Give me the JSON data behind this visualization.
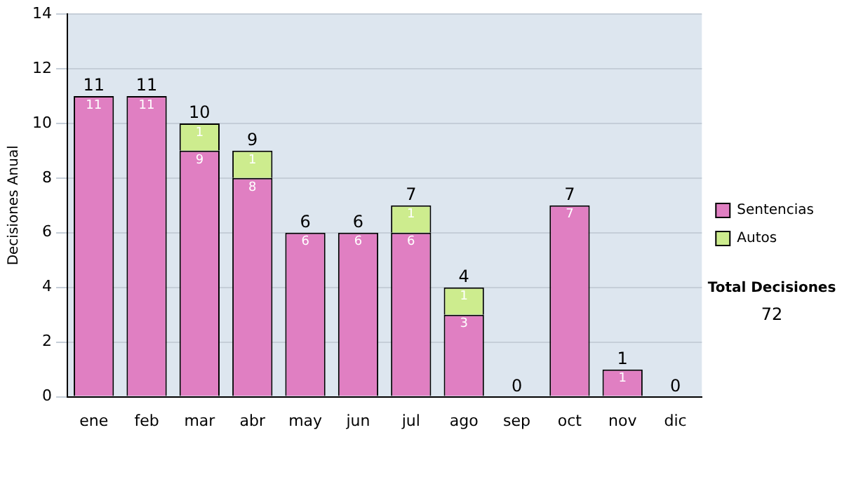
{
  "chart_data": {
    "type": "bar",
    "stacked": true,
    "ylabel": "Decisiones Anual",
    "categories": [
      "ene",
      "feb",
      "mar",
      "abr",
      "may",
      "jun",
      "jul",
      "ago",
      "sep",
      "oct",
      "nov",
      "dic"
    ],
    "series": [
      {
        "name": "Sentencias",
        "color": "#e07fc2",
        "values": [
          11,
          11,
          9,
          8,
          6,
          6,
          6,
          3,
          0,
          7,
          1,
          0
        ],
        "value_labels": [
          "11",
          "11",
          "9",
          "8",
          "6",
          "6",
          "6",
          "3",
          null,
          "7",
          "1",
          null
        ]
      },
      {
        "name": "Autos",
        "color": "#cdec8e",
        "values": [
          null,
          null,
          1,
          1,
          null,
          null,
          1,
          1,
          null,
          null,
          null,
          null
        ],
        "value_labels": [
          null,
          null,
          "1",
          "1",
          null,
          null,
          "1",
          "1",
          null,
          null,
          null,
          null
        ]
      }
    ],
    "totals": [
      "11",
      "11",
      "10",
      "9",
      "6",
      "6",
      "7",
      "4",
      "0",
      "7",
      "1",
      "0"
    ],
    "ylim": [
      0,
      14
    ],
    "yticks": [
      0,
      2,
      4,
      6,
      8,
      10,
      12,
      14
    ],
    "grid": "y",
    "legend": "right",
    "annotations": [
      "Total Decisiones",
      "72"
    ]
  }
}
